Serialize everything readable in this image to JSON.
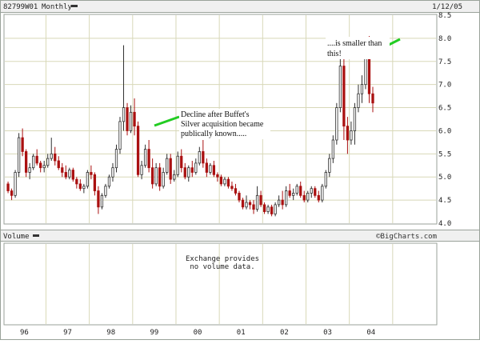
{
  "header": {
    "symbol": "82799W01",
    "period": "Monthly",
    "date": "1/12/05"
  },
  "volume_panel": {
    "label": "Volume",
    "message_line1": "Exchange provides",
    "message_line2": "no volume data."
  },
  "branding": {
    "watermark": "©BigCharts.com"
  },
  "annotations": {
    "decline_line1": "Decline after Buffet's",
    "decline_line2": "Silver acquisition became",
    "decline_line3": "publically known.....",
    "smaller_line1": "....is smaller than",
    "smaller_line2": "this!"
  },
  "colors": {
    "frame": "#9aa29a",
    "header_bg": "#f0f0f0",
    "grid": "#d8d8b8",
    "candle_up": "#303030",
    "candle_down": "#aa1111",
    "arrow": "#22cc22",
    "text": "#222222"
  },
  "chart_data": {
    "type": "candlestick",
    "frequency": "monthly",
    "x_tick_labels": [
      "96",
      "97",
      "98",
      "99",
      "00",
      "01",
      "02",
      "03",
      "04"
    ],
    "x_tick_positions": [
      1996,
      1997,
      1998,
      1999,
      2000,
      2001,
      2002,
      2003,
      2004
    ],
    "xlim": [
      1995.05,
      2005.0
    ],
    "y_tick_labels": [
      "4.0",
      "4.5",
      "5.0",
      "5.5",
      "6.0",
      "6.5",
      "7.0",
      "7.5",
      "8.0",
      "8.5"
    ],
    "y_ticks": [
      4.0,
      4.5,
      5.0,
      5.5,
      6.0,
      6.5,
      7.0,
      7.5,
      8.0,
      8.5
    ],
    "ylim": [
      4.0,
      8.5
    ],
    "grid": true,
    "y_axis_side": "right",
    "start": "1995-02",
    "candles": [
      [
        4.85,
        4.9,
        4.65,
        4.7
      ],
      [
        4.7,
        4.75,
        4.5,
        4.6
      ],
      [
        4.6,
        5.15,
        4.55,
        5.1
      ],
      [
        5.1,
        5.95,
        5.0,
        5.85
      ],
      [
        5.85,
        6.05,
        5.45,
        5.55
      ],
      [
        5.55,
        5.6,
        5.0,
        5.1
      ],
      [
        5.1,
        5.3,
        4.95,
        5.2
      ],
      [
        5.2,
        5.5,
        5.15,
        5.45
      ],
      [
        5.45,
        5.6,
        5.25,
        5.3
      ],
      [
        5.3,
        5.35,
        5.1,
        5.2
      ],
      [
        5.2,
        5.35,
        5.1,
        5.25
      ],
      [
        5.25,
        5.5,
        5.2,
        5.4
      ],
      [
        5.4,
        5.85,
        5.35,
        5.5
      ],
      [
        5.5,
        5.65,
        5.25,
        5.35
      ],
      [
        5.35,
        5.45,
        5.15,
        5.2
      ],
      [
        5.2,
        5.3,
        5.0,
        5.1
      ],
      [
        5.1,
        5.25,
        4.95,
        5.0
      ],
      [
        5.0,
        5.2,
        4.95,
        5.15
      ],
      [
        5.15,
        5.2,
        4.9,
        4.95
      ],
      [
        4.95,
        5.0,
        4.75,
        4.85
      ],
      [
        4.85,
        4.95,
        4.7,
        4.75
      ],
      [
        4.75,
        4.85,
        4.65,
        4.8
      ],
      [
        4.8,
        5.15,
        4.75,
        5.1
      ],
      [
        5.1,
        5.25,
        4.95,
        5.05
      ],
      [
        5.05,
        5.1,
        4.6,
        4.7
      ],
      [
        4.7,
        4.8,
        4.2,
        4.35
      ],
      [
        4.35,
        4.65,
        4.3,
        4.6
      ],
      [
        4.6,
        4.85,
        4.55,
        4.8
      ],
      [
        4.8,
        5.05,
        4.75,
        5.0
      ],
      [
        5.0,
        5.3,
        4.9,
        5.2
      ],
      [
        5.2,
        5.7,
        5.1,
        5.6
      ],
      [
        5.6,
        6.3,
        5.5,
        6.2
      ],
      [
        6.2,
        7.85,
        6.0,
        6.5
      ],
      [
        6.5,
        6.6,
        5.9,
        6.0
      ],
      [
        6.0,
        6.55,
        5.95,
        6.4
      ],
      [
        6.4,
        6.7,
        5.9,
        6.1
      ],
      [
        6.1,
        6.2,
        5.0,
        5.05
      ],
      [
        5.05,
        5.35,
        4.95,
        5.25
      ],
      [
        5.25,
        5.7,
        5.2,
        5.6
      ],
      [
        5.6,
        5.8,
        5.1,
        5.2
      ],
      [
        5.2,
        5.4,
        4.75,
        4.85
      ],
      [
        4.85,
        5.3,
        4.8,
        5.2
      ],
      [
        5.2,
        5.3,
        4.7,
        4.8
      ],
      [
        4.8,
        5.2,
        4.75,
        5.1
      ],
      [
        5.1,
        5.5,
        5.05,
        5.4
      ],
      [
        5.4,
        5.5,
        4.85,
        4.95
      ],
      [
        4.95,
        5.15,
        4.9,
        5.05
      ],
      [
        5.05,
        5.55,
        5.0,
        5.45
      ],
      [
        5.45,
        5.6,
        5.1,
        5.2
      ],
      [
        5.2,
        5.3,
        4.95,
        5.0
      ],
      [
        5.0,
        5.25,
        4.9,
        5.2
      ],
      [
        5.2,
        5.35,
        5.0,
        5.1
      ],
      [
        5.1,
        5.4,
        5.05,
        5.3
      ],
      [
        5.3,
        5.65,
        5.25,
        5.55
      ],
      [
        5.55,
        5.8,
        5.2,
        5.3
      ],
      [
        5.3,
        5.4,
        5.0,
        5.1
      ],
      [
        5.1,
        5.3,
        5.05,
        5.25
      ],
      [
        5.25,
        5.35,
        5.0,
        5.05
      ],
      [
        5.05,
        5.1,
        4.9,
        5.0
      ],
      [
        5.0,
        5.05,
        4.8,
        4.85
      ],
      [
        4.85,
        5.0,
        4.8,
        4.95
      ],
      [
        4.95,
        5.0,
        4.75,
        4.8
      ],
      [
        4.8,
        4.9,
        4.7,
        4.75
      ],
      [
        4.75,
        4.85,
        4.6,
        4.65
      ],
      [
        4.65,
        4.7,
        4.45,
        4.5
      ],
      [
        4.5,
        4.55,
        4.3,
        4.35
      ],
      [
        4.35,
        4.6,
        4.3,
        4.45
      ],
      [
        4.45,
        4.5,
        4.3,
        4.4
      ],
      [
        4.4,
        4.5,
        4.2,
        4.3
      ],
      [
        4.3,
        4.8,
        4.25,
        4.6
      ],
      [
        4.6,
        4.7,
        4.35,
        4.4
      ],
      [
        4.4,
        4.45,
        4.2,
        4.25
      ],
      [
        4.25,
        4.4,
        4.2,
        4.35
      ],
      [
        4.35,
        4.4,
        4.15,
        4.2
      ],
      [
        4.2,
        4.45,
        4.15,
        4.4
      ],
      [
        4.4,
        4.6,
        4.35,
        4.5
      ],
      [
        4.5,
        4.7,
        4.3,
        4.4
      ],
      [
        4.4,
        4.8,
        4.35,
        4.7
      ],
      [
        4.7,
        4.85,
        4.55,
        4.6
      ],
      [
        4.6,
        4.75,
        4.5,
        4.65
      ],
      [
        4.65,
        4.85,
        4.6,
        4.8
      ],
      [
        4.8,
        4.9,
        4.55,
        4.6
      ],
      [
        4.6,
        4.7,
        4.45,
        4.5
      ],
      [
        4.5,
        4.7,
        4.45,
        4.65
      ],
      [
        4.65,
        4.8,
        4.55,
        4.75
      ],
      [
        4.75,
        4.8,
        4.55,
        4.6
      ],
      [
        4.6,
        4.7,
        4.45,
        4.5
      ],
      [
        4.5,
        4.85,
        4.45,
        4.8
      ],
      [
        4.8,
        5.15,
        4.75,
        5.1
      ],
      [
        5.1,
        5.5,
        5.0,
        5.4
      ],
      [
        5.4,
        5.9,
        5.3,
        5.8
      ],
      [
        5.8,
        6.6,
        5.7,
        6.5
      ],
      [
        6.5,
        8.0,
        6.4,
        7.4
      ],
      [
        7.4,
        7.6,
        5.8,
        6.1
      ],
      [
        6.1,
        6.3,
        5.5,
        5.8
      ],
      [
        5.8,
        6.2,
        5.7,
        6.0
      ],
      [
        6.0,
        6.6,
        5.7,
        6.5
      ],
      [
        6.5,
        7.0,
        6.4,
        6.8
      ],
      [
        6.8,
        7.2,
        6.6,
        7.0
      ],
      [
        7.0,
        7.8,
        6.9,
        7.7
      ],
      [
        7.7,
        8.05,
        6.6,
        6.8
      ],
      [
        6.8,
        6.95,
        6.4,
        6.6
      ]
    ]
  }
}
